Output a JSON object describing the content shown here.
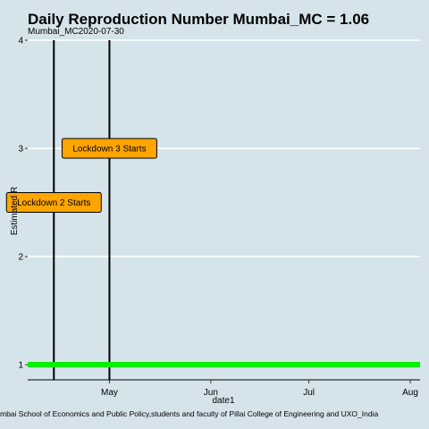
{
  "chart_data": {
    "type": "line",
    "title": "Daily Reproduction Number Mumbai_MC = 1.06",
    "subtitle": "Mumbai_MC2020-07-30",
    "xlabel": "date1",
    "ylabel": "Estimated R",
    "caption": "mbai School of Economics and Public Policy,students and faculty of Pillai College of Engineering and UXO_India",
    "x_ticks": [
      {
        "date": "2020-05-01",
        "label": "May"
      },
      {
        "date": "2020-06-01",
        "label": "Jun"
      },
      {
        "date": "2020-07-01",
        "label": "Jul"
      },
      {
        "date": "2020-08-01",
        "label": "Aug"
      }
    ],
    "y_ticks": [
      1,
      2,
      3,
      4
    ],
    "xlim": [
      "2020-04-06",
      "2020-08-04"
    ],
    "ylim": [
      0.86,
      4.0
    ],
    "grid": true,
    "colors": {
      "background": "#d5e4eb",
      "grid": "#ffffff",
      "series": "#00ee00",
      "annotation_fill": "#ffa500"
    },
    "series": [
      {
        "x": [
          "2020-04-06",
          "2020-08-04"
        ],
        "y": [
          1.0,
          1.0
        ]
      }
    ],
    "vlines": [
      {
        "date": "2020-04-14"
      },
      {
        "date": "2020-05-01"
      }
    ],
    "annotations": [
      {
        "text": "Lockdown 2 Starts",
        "x": "2020-04-14",
        "y": 2.5
      },
      {
        "text": "Lockdown 3 Starts",
        "x": "2020-05-01",
        "y": 3.0
      }
    ]
  }
}
